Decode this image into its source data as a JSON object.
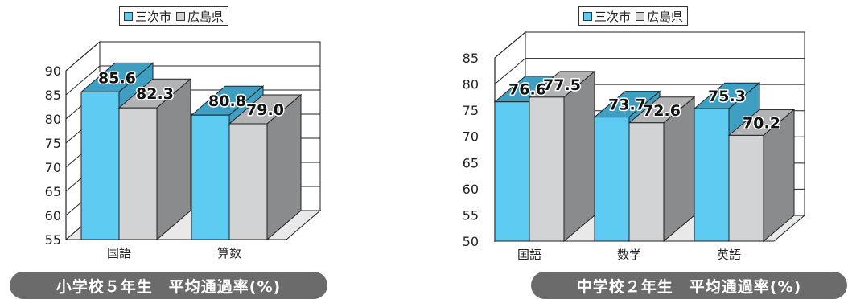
{
  "charts": [
    {
      "banner": "小学校５年生　平均通過率(%)",
      "legend": [
        "三次市",
        "広島県"
      ],
      "chart_data": {
        "type": "bar",
        "categories": [
          "国語",
          "算数"
        ],
        "series": [
          {
            "name": "三次市",
            "values": [
              85.6,
              80.8
            ]
          },
          {
            "name": "広島県",
            "values": [
              82.3,
              79.0
            ]
          }
        ],
        "yticks": [
          "55",
          "60",
          "65",
          "70",
          "75",
          "80",
          "85",
          "90"
        ],
        "ylim": [
          55,
          90
        ]
      }
    },
    {
      "banner": "中学校２年生　平均通過率(%)",
      "legend": [
        "三次市",
        "広島県"
      ],
      "chart_data": {
        "type": "bar",
        "categories": [
          "国語",
          "数学",
          "英語"
        ],
        "series": [
          {
            "name": "三次市",
            "values": [
              76.6,
              73.7,
              75.3
            ]
          },
          {
            "name": "広島県",
            "values": [
              77.5,
              72.6,
              70.2
            ]
          }
        ],
        "yticks": [
          "50",
          "55",
          "60",
          "65",
          "70",
          "75",
          "80",
          "85"
        ],
        "ylim": [
          50,
          85
        ]
      }
    }
  ],
  "colors": {
    "city_front": "#5ecbf2",
    "city_top": "#3f9fc2",
    "city_side": "#3f9fc2",
    "pref_front": "#d2d3d5",
    "pref_top": "#b2b3b5",
    "pref_side": "#8a8b8d",
    "banner": "#6b6b6b"
  }
}
